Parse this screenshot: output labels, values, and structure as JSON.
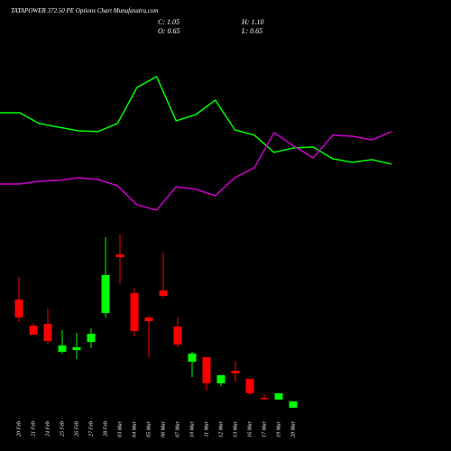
{
  "header": {
    "title": "TATAPOWER 372.50 PE Options Chart Munafasutra.com",
    "stats": [
      "C: 1.05",
      "H: 1.10",
      "O: 0.65",
      "L: 0.65"
    ]
  },
  "chart_data": [
    {
      "type": "line",
      "ylim": [
        0,
        100
      ],
      "series": [
        {
          "color": "#00ff00",
          "values": [
            71.9,
            71.9,
            64.4,
            61.9,
            59.4,
            58.8,
            64.4,
            89.4,
            96.9,
            66.3,
            70.6,
            80.6,
            60,
            56.3,
            44.4,
            47.5,
            48.1,
            40,
            37.5,
            39.4,
            36.3
          ]
        },
        {
          "color": "#cc00cc",
          "values": [
            22.5,
            22.5,
            24.4,
            25,
            26.9,
            25.6,
            21.3,
            8.1,
            4.4,
            20.6,
            18.8,
            14.4,
            26.9,
            33.8,
            58.1,
            48.8,
            40.6,
            56.3,
            55.6,
            53.1,
            58.8
          ]
        }
      ]
    },
    {
      "type": "candlestick",
      "ylim": [
        0,
        4
      ],
      "up_color": "#00ff00",
      "down_color": "#ff0000",
      "categories": [
        "20 Feb",
        "21 Feb",
        "24 Feb",
        "25 Feb",
        "26 Feb",
        "27 Feb",
        "28 Feb",
        "03 Mar",
        "04 Mar",
        "05 Mar",
        "06 Mar",
        "07 Mar",
        "10 Mar",
        "11 Mar",
        "12 Mar",
        "13 Mar",
        "16 Mar",
        "17 Mar",
        "19 Mar",
        "20 Mar"
      ],
      "open": [
        2.56,
        1.98,
        2.02,
        1.4,
        1.44,
        1.62,
        2.26,
        3.56,
        2.7,
        2.16,
        2.76,
        1.96,
        1.18,
        1.28,
        0.7,
        0.98,
        0.8,
        0.38,
        0.34,
        0.16
      ],
      "high": [
        3.06,
        2.04,
        2.36,
        1.88,
        1.82,
        1.92,
        3.94,
        4.0,
        2.8,
        2.2,
        3.6,
        2.16,
        1.4,
        1.28,
        0.88,
        1.2,
        0.8,
        0.46,
        0.48,
        0.3
      ],
      "low": [
        2.06,
        1.78,
        1.58,
        1.36,
        1.24,
        1.48,
        2.16,
        2.92,
        1.74,
        1.28,
        2.6,
        1.5,
        0.84,
        0.54,
        0.64,
        0.74,
        0.44,
        0.32,
        0.34,
        0.16
      ],
      "close": [
        2.16,
        1.78,
        1.64,
        1.54,
        1.5,
        1.8,
        3.1,
        3.5,
        1.86,
        2.08,
        2.64,
        1.56,
        1.36,
        0.7,
        0.88,
        0.92,
        0.48,
        0.36,
        0.48,
        0.3
      ]
    }
  ]
}
